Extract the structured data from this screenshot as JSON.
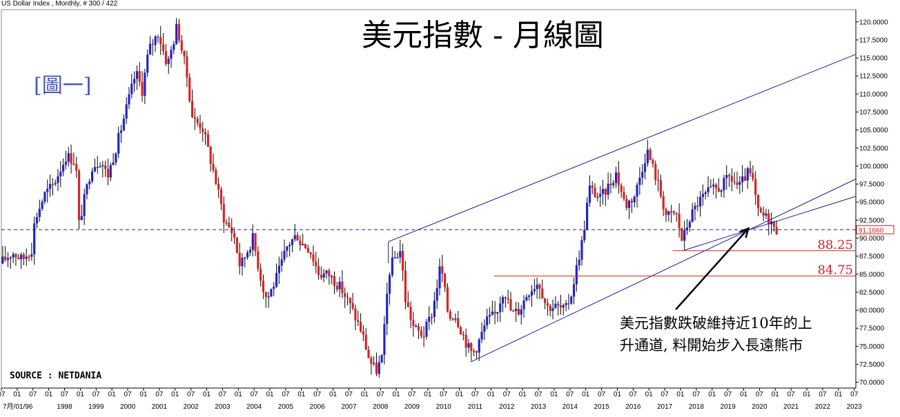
{
  "window": {
    "title": "US Dollar Index , Monthly, # 300 / 422"
  },
  "labels": {
    "title": "美元指數 - 月線圖",
    "figure": "[圖一]",
    "source": "SOURCE : NETDANIA",
    "annotation_line1": "美元指數跌破維持近10年的上",
    "annotation_line2": "升通道, 料開始步入長遠熊市",
    "current_price": "91.1660"
  },
  "colors": {
    "up_candle": "#2222cc",
    "down_candle": "#dd2222",
    "channel": "#1a1a9a",
    "support": "#cc2222",
    "price_line": "#1a1a9a"
  },
  "chart_data": {
    "type": "candlestick",
    "title": "美元指數 - 月線圖",
    "ylim": [
      69.2,
      121.7
    ],
    "xlim": [
      1996.5,
      2023.55
    ],
    "y_ticks": [
      "120.0000",
      "117.5000",
      "115.0000",
      "112.5000",
      "110.0000",
      "107.5000",
      "105.0000",
      "102.5000",
      "100.0000",
      "97.5000",
      "95.0000",
      "92.5000",
      "90.0000",
      "87.5000",
      "85.0000",
      "82.5000",
      "80.0000",
      "77.5000",
      "75.0000",
      "72.5000",
      "70.0000"
    ],
    "x_month_labels": [
      "07",
      "01",
      "07",
      "01",
      "07",
      "01",
      "07",
      "01",
      "07",
      "01",
      "07",
      "01",
      "07",
      "01",
      "07",
      "01",
      "07",
      "01",
      "07",
      "01",
      "07",
      "01",
      "07",
      "01",
      "07",
      "01",
      "07",
      "01",
      "07",
      "01",
      "07",
      "01",
      "07",
      "01",
      "07",
      "01",
      "07",
      "01",
      "07",
      "01",
      "07",
      "01",
      "07",
      "01",
      "07",
      "01",
      "07",
      "01",
      "07",
      "01",
      "07",
      "01",
      "07",
      "01",
      "07"
    ],
    "x_year_labels": [
      {
        "x": 1996.5,
        "label": "7月/01/96"
      },
      {
        "x": 1998.5,
        "label": "1998"
      },
      {
        "x": 1999.5,
        "label": "1999"
      },
      {
        "x": 2000.5,
        "label": "2000"
      },
      {
        "x": 2001.5,
        "label": "2001"
      },
      {
        "x": 2002.5,
        "label": "2002"
      },
      {
        "x": 2003.5,
        "label": "2003"
      },
      {
        "x": 2004.5,
        "label": "2004"
      },
      {
        "x": 2005.5,
        "label": "2005"
      },
      {
        "x": 2006.5,
        "label": "2006"
      },
      {
        "x": 2007.5,
        "label": "2007"
      },
      {
        "x": 2008.5,
        "label": "2008"
      },
      {
        "x": 2009.5,
        "label": "2009"
      },
      {
        "x": 2010.5,
        "label": "2010"
      },
      {
        "x": 2011.5,
        "label": "2011"
      },
      {
        "x": 2012.5,
        "label": "2012"
      },
      {
        "x": 2013.5,
        "label": "2013"
      },
      {
        "x": 2014.5,
        "label": "2014"
      },
      {
        "x": 2015.5,
        "label": "2015"
      },
      {
        "x": 2016.5,
        "label": "2016"
      },
      {
        "x": 2017.5,
        "label": "2017"
      },
      {
        "x": 2018.5,
        "label": "2018"
      },
      {
        "x": 2019.5,
        "label": "2019"
      },
      {
        "x": 2020.5,
        "label": "2020"
      },
      {
        "x": 2021.5,
        "label": "2021"
      },
      {
        "x": 2022.5,
        "label": "2022"
      },
      {
        "x": 2023.5,
        "label": "2023"
      }
    ],
    "price_path": [
      [
        1996.5,
        86.5
      ],
      [
        1996.9,
        88.0
      ],
      [
        1997.2,
        87.0
      ],
      [
        1997.5,
        88.5
      ],
      [
        1997.6,
        92.5
      ],
      [
        1997.9,
        96.0
      ],
      [
        1998.2,
        97.5
      ],
      [
        1998.6,
        101.5
      ],
      [
        1998.9,
        100.5
      ],
      [
        1999.0,
        92.0
      ],
      [
        1999.2,
        96.0
      ],
      [
        1999.4,
        100.0
      ],
      [
        1999.7,
        100.8
      ],
      [
        1999.9,
        98.5
      ],
      [
        2000.2,
        103.0
      ],
      [
        2000.5,
        108.0
      ],
      [
        2000.8,
        113.0
      ],
      [
        2001.0,
        110.5
      ],
      [
        2001.2,
        116.0
      ],
      [
        2001.5,
        118.5
      ],
      [
        2001.8,
        114.0
      ],
      [
        2002.0,
        117.5
      ],
      [
        2002.1,
        119.5
      ],
      [
        2002.4,
        113.0
      ],
      [
        2002.6,
        106.5
      ],
      [
        2002.9,
        105.5
      ],
      [
        2003.3,
        98.5
      ],
      [
        2003.6,
        92.5
      ],
      [
        2003.9,
        90.5
      ],
      [
        2004.1,
        86.0
      ],
      [
        2004.5,
        90.0
      ],
      [
        2004.8,
        83.5
      ],
      [
        2004.95,
        81.5
      ],
      [
        2005.3,
        85.0
      ],
      [
        2005.6,
        89.0
      ],
      [
        2005.9,
        90.5
      ],
      [
        2006.0,
        89.5
      ],
      [
        2006.3,
        88.5
      ],
      [
        2006.6,
        85.0
      ],
      [
        2006.9,
        85.0
      ],
      [
        2007.3,
        83.0
      ],
      [
        2007.6,
        80.5
      ],
      [
        2007.95,
        77.0
      ],
      [
        2008.2,
        73.0
      ],
      [
        2008.4,
        71.5
      ],
      [
        2008.6,
        73.5
      ],
      [
        2008.8,
        85.0
      ],
      [
        2008.95,
        87.0
      ],
      [
        2009.2,
        88.5
      ],
      [
        2009.3,
        82.0
      ],
      [
        2009.6,
        77.5
      ],
      [
        2009.9,
        76.5
      ],
      [
        2010.2,
        80.0
      ],
      [
        2010.45,
        86.5
      ],
      [
        2010.7,
        79.0
      ],
      [
        2010.9,
        79.5
      ],
      [
        2011.3,
        75.0
      ],
      [
        2011.45,
        74.0
      ],
      [
        2011.6,
        75.0
      ],
      [
        2011.9,
        78.5
      ],
      [
        2012.2,
        79.5
      ],
      [
        2012.45,
        83.0
      ],
      [
        2012.7,
        79.5
      ],
      [
        2012.95,
        80.0
      ],
      [
        2013.2,
        82.5
      ],
      [
        2013.55,
        84.0
      ],
      [
        2013.8,
        80.5
      ],
      [
        2014.1,
        80.5
      ],
      [
        2014.4,
        80.0
      ],
      [
        2014.6,
        82.5
      ],
      [
        2014.8,
        87.0
      ],
      [
        2014.95,
        90.0
      ],
      [
        2015.15,
        97.0
      ],
      [
        2015.5,
        95.5
      ],
      [
        2015.8,
        97.5
      ],
      [
        2016.0,
        99.0
      ],
      [
        2016.3,
        94.5
      ],
      [
        2016.6,
        96.0
      ],
      [
        2016.9,
        101.0
      ],
      [
        2017.0,
        102.0
      ],
      [
        2017.3,
        98.0
      ],
      [
        2017.6,
        93.0
      ],
      [
        2017.9,
        93.5
      ],
      [
        2018.1,
        89.5
      ],
      [
        2018.3,
        92.5
      ],
      [
        2018.6,
        95.0
      ],
      [
        2018.95,
        96.5
      ],
      [
        2019.3,
        97.0
      ],
      [
        2019.6,
        98.5
      ],
      [
        2019.9,
        97.0
      ],
      [
        2020.15,
        99.0
      ],
      [
        2020.3,
        98.5
      ],
      [
        2020.5,
        93.5
      ],
      [
        2020.7,
        93.0
      ],
      [
        2020.9,
        92.5
      ],
      [
        2021.0,
        91.17
      ]
    ],
    "candle_noise_seed": 17,
    "channel_upper": [
      [
        2008.75,
        89.5
      ],
      [
        2023.55,
        115.5
      ]
    ],
    "channel_lower": [
      [
        2011.35,
        72.8
      ],
      [
        2023.55,
        98.2
      ]
    ],
    "trend_short": [
      [
        2018.1,
        88.3
      ],
      [
        2023.55,
        95.8
      ]
    ],
    "support_levels": [
      {
        "value": 88.25,
        "from": 2017.75,
        "label": "88.25"
      },
      {
        "value": 84.75,
        "from": 2012.1,
        "label": "84.75"
      }
    ],
    "current_price": 91.166,
    "arrow": {
      "from": [
        2017.85,
        80.1
      ],
      "to": [
        2020.15,
        91.35
      ]
    }
  }
}
